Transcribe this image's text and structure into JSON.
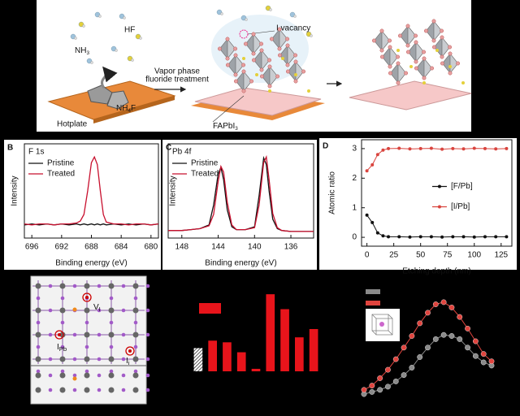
{
  "schematic": {
    "hf": "HF",
    "nh3": {
      "text": "NH",
      "sub": "3"
    },
    "nh4f": {
      "text": "NH",
      "sub": "4",
      "tail": "F"
    },
    "hotplate": "Hotplate",
    "treatment": [
      "Vapor phase",
      "fluoride treatment"
    ],
    "vacancy": "I vacancy",
    "fapbi3": {
      "text": "FAPbI",
      "sub": "3"
    }
  },
  "lattice": {
    "vacancy": {
      "text": "V",
      "sub": "I"
    },
    "antisite": {
      "text": "I",
      "sub": "Pb"
    },
    "interstitial": {
      "text": "I",
      "sub": "i"
    }
  },
  "chart_data": [
    {
      "type": "line",
      "panel": "B",
      "title": "F 1s",
      "x_label": "Binding energy (eV)",
      "y_label": "Intensity",
      "x": [
        697,
        696,
        695,
        694,
        693,
        692,
        691,
        690,
        689.5,
        689,
        688.5,
        688,
        687.6,
        687.2,
        686.8,
        686.4,
        686,
        685,
        684,
        683,
        682,
        681,
        680,
        679
      ],
      "series": [
        {
          "name": "Pristine",
          "color": "#111111",
          "values": [
            0.14,
            0.15,
            0.14,
            0.15,
            0.14,
            0.15,
            0.14,
            0.15,
            0.14,
            0.15,
            0.14,
            0.15,
            0.14,
            0.15,
            0.14,
            0.15,
            0.14,
            0.15,
            0.14,
            0.15,
            0.14,
            0.15,
            0.14,
            0.15
          ]
        },
        {
          "name": "Treated",
          "color": "#c8102e",
          "values": [
            0.15,
            0.14,
            0.15,
            0.15,
            0.14,
            0.15,
            0.15,
            0.16,
            0.18,
            0.25,
            0.5,
            0.8,
            0.86,
            0.78,
            0.5,
            0.25,
            0.17,
            0.15,
            0.15,
            0.14,
            0.15,
            0.15,
            0.14,
            0.15
          ]
        }
      ],
      "xlim": [
        697,
        679
      ],
      "xticks": [
        696,
        692,
        688,
        684,
        680
      ],
      "ylim": [
        0,
        1
      ],
      "legend": "upper left"
    },
    {
      "type": "line",
      "panel": "C",
      "title": "Pb 4f",
      "x_label": "Binding energy (eV)",
      "y_label": "Intensity",
      "x": [
        149.5,
        148,
        147,
        146,
        145,
        144.5,
        144,
        143.7,
        143.4,
        143,
        142.5,
        142,
        141,
        140,
        139.5,
        139,
        138.7,
        138.4,
        138,
        137.5,
        137,
        136,
        135,
        134,
        133.5
      ],
      "series": [
        {
          "name": "Pristine",
          "color": "#111111",
          "values": [
            0.08,
            0.08,
            0.09,
            0.1,
            0.14,
            0.35,
            0.68,
            0.75,
            0.62,
            0.3,
            0.12,
            0.09,
            0.09,
            0.12,
            0.45,
            0.85,
            0.78,
            0.5,
            0.2,
            0.1,
            0.08,
            0.07,
            0.07,
            0.07,
            0.07
          ]
        },
        {
          "name": "Treated",
          "color": "#c8102e",
          "values": [
            0.08,
            0.08,
            0.09,
            0.1,
            0.13,
            0.25,
            0.6,
            0.76,
            0.7,
            0.38,
            0.14,
            0.09,
            0.09,
            0.11,
            0.35,
            0.8,
            0.86,
            0.62,
            0.26,
            0.11,
            0.08,
            0.07,
            0.07,
            0.07,
            0.07
          ]
        }
      ],
      "xlim": [
        149.5,
        133.5
      ],
      "xticks": [
        148,
        144,
        140,
        136
      ],
      "ylim": [
        0,
        1
      ],
      "legend": "upper left"
    },
    {
      "type": "line",
      "panel": "D",
      "x_label": "Etching depth (nm)",
      "y_label": "Atomic ratio",
      "x": [
        0,
        5,
        10,
        15,
        20,
        30,
        40,
        50,
        60,
        70,
        80,
        90,
        100,
        110,
        120,
        130
      ],
      "series": [
        {
          "name": "[F/Pb]",
          "color": "#111111",
          "values": [
            0.75,
            0.5,
            0.15,
            0.05,
            0.02,
            0.02,
            0.01,
            0.02,
            0.02,
            0.01,
            0.02,
            0.02,
            0.01,
            0.02,
            0.02,
            0.02
          ]
        },
        {
          "name": "[I/Pb]",
          "color": "#d9443e",
          "values": [
            2.25,
            2.45,
            2.8,
            2.95,
            3.0,
            3.01,
            2.99,
            3.0,
            3.01,
            2.98,
            3.0,
            2.99,
            3.01,
            3.0,
            2.99,
            3.0
          ]
        }
      ],
      "xlim": [
        -5,
        135
      ],
      "xticks": [
        0,
        25,
        50,
        75,
        100,
        125
      ],
      "ylim": [
        -0.3,
        3.3
      ],
      "yticks": [
        0,
        1,
        2,
        3
      ],
      "markers": true,
      "legend": "center right"
    },
    {
      "type": "bar",
      "categories": [
        null,
        null,
        null,
        null,
        null,
        null,
        null,
        null,
        null
      ],
      "values": [
        28,
        37,
        35,
        23,
        3,
        93,
        75,
        41,
        51
      ],
      "color": "#e8141b",
      "hatched": [
        0
      ],
      "ylim": [
        0,
        100
      ]
    },
    {
      "type": "line",
      "x": [
        0,
        1,
        2,
        3,
        4,
        5,
        6,
        7,
        8,
        9,
        10,
        11,
        12,
        13,
        14,
        15,
        16
      ],
      "series": [
        {
          "color": "#8a8a8a",
          "values": [
            0.0,
            0.02,
            0.04,
            0.07,
            0.12,
            0.18,
            0.25,
            0.35,
            0.44,
            0.52,
            0.56,
            0.55,
            0.52,
            0.44,
            0.36,
            0.3,
            0.27
          ]
        },
        {
          "color": "#e0443e",
          "values": [
            0.04,
            0.08,
            0.15,
            0.23,
            0.33,
            0.44,
            0.55,
            0.67,
            0.77,
            0.85,
            0.87,
            0.82,
            0.73,
            0.62,
            0.5,
            0.38,
            0.31
          ]
        }
      ],
      "xlim": [
        0,
        16
      ],
      "ylim": [
        0,
        1
      ],
      "markers": true
    }
  ]
}
